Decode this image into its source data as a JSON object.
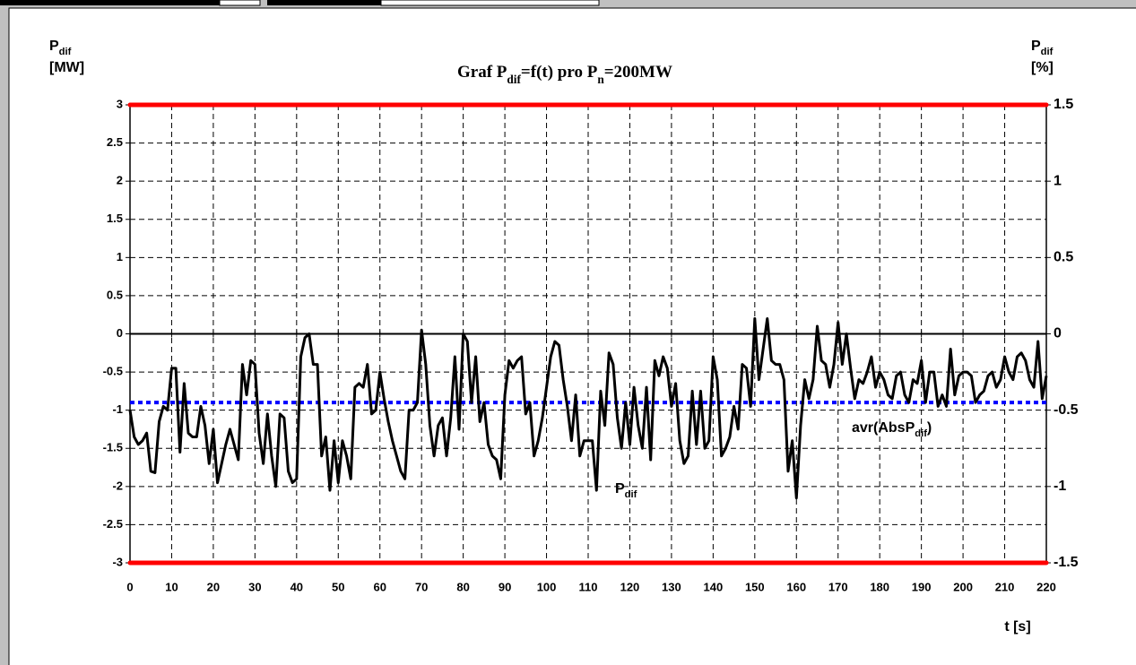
{
  "chart_data": {
    "type": "line",
    "title": [
      {
        "text": "Graf P",
        "sub": false
      },
      {
        "text": "dif",
        "sub": true
      },
      {
        "text": "=f(t) pro P",
        "sub": false
      },
      {
        "text": "n",
        "sub": true
      },
      {
        "text": "=200MW",
        "sub": false
      }
    ],
    "ylabel": [
      {
        "text": "P",
        "sub": false
      },
      {
        "text": "dif",
        "sub": true
      },
      {
        "text": "[MW]",
        "sub": false,
        "newline": true
      }
    ],
    "y2label": [
      {
        "text": "P",
        "sub": false
      },
      {
        "text": "dif",
        "sub": true
      },
      {
        "text": "[%]",
        "sub": false,
        "newline": true
      }
    ],
    "xlabel": "t [s]",
    "xlim": [
      0,
      220
    ],
    "xticks": [
      0,
      10,
      20,
      30,
      40,
      50,
      60,
      70,
      80,
      90,
      100,
      110,
      120,
      130,
      140,
      150,
      160,
      170,
      180,
      190,
      200,
      210,
      220
    ],
    "ylim": [
      -3,
      3
    ],
    "yticks": [
      3,
      2.5,
      2,
      1.5,
      1,
      0.5,
      0,
      -0.5,
      -1,
      -1.5,
      -2,
      -2.5,
      -3
    ],
    "y2lim": [
      -1.5,
      1.5
    ],
    "y2ticks": [
      1.5,
      1,
      0.5,
      0,
      -0.5,
      -1,
      -1.5
    ],
    "grid": true,
    "x": [
      0,
      1,
      2,
      3,
      4,
      5,
      6,
      7,
      8,
      9,
      10,
      11,
      12,
      13,
      14,
      15,
      16,
      17,
      18,
      19,
      20,
      21,
      22,
      23,
      24,
      25,
      26,
      27,
      28,
      29,
      30,
      31,
      32,
      33,
      34,
      35,
      36,
      37,
      38,
      39,
      40,
      41,
      42,
      43,
      44,
      45,
      46,
      47,
      48,
      49,
      50,
      51,
      52,
      53,
      54,
      55,
      56,
      57,
      58,
      59,
      60,
      61,
      62,
      63,
      64,
      65,
      66,
      67,
      68,
      69,
      70,
      71,
      72,
      73,
      74,
      75,
      76,
      77,
      78,
      79,
      80,
      81,
      82,
      83,
      84,
      85,
      86,
      87,
      88,
      89,
      90,
      91,
      92,
      93,
      94,
      95,
      96,
      97,
      98,
      99,
      100,
      101,
      102,
      103,
      104,
      105,
      106,
      107,
      108,
      109,
      110,
      111,
      112,
      113,
      114,
      115,
      116,
      117,
      118,
      119,
      120,
      121,
      122,
      123,
      124,
      125,
      126,
      127,
      128,
      129,
      130,
      131,
      132,
      133,
      134,
      135,
      136,
      137,
      138,
      139,
      140,
      141,
      142,
      143,
      144,
      145,
      146,
      147,
      148,
      149,
      150,
      151,
      152,
      153,
      154,
      155,
      156,
      157,
      158,
      159,
      160,
      161,
      162,
      163,
      164,
      165,
      166,
      167,
      168,
      169,
      170,
      171,
      172,
      173,
      174,
      175,
      176,
      177,
      178,
      179,
      180,
      181,
      182,
      183,
      184,
      185,
      186,
      187,
      188,
      189,
      190,
      191,
      192,
      193,
      194,
      195,
      196,
      197,
      198,
      199,
      200,
      201,
      202,
      203,
      204,
      205,
      206,
      207,
      208,
      209,
      210,
      211,
      212,
      213,
      214,
      215,
      216,
      217,
      218,
      219,
      220
    ],
    "series": [
      {
        "color": "#000000",
        "values": [
          -1,
          -1.35,
          -1.45,
          -1.4,
          -1.3,
          -1.8,
          -1.82,
          -1.15,
          -0.95,
          -1,
          -0.45,
          -0.45,
          -1.55,
          -0.65,
          -1.3,
          -1.35,
          -1.35,
          -0.95,
          -1.2,
          -1.7,
          -1.25,
          -1.95,
          -1.7,
          -1.45,
          -1.25,
          -1.45,
          -1.65,
          -0.4,
          -0.8,
          -0.35,
          -0.4,
          -1.3,
          -1.7,
          -1.05,
          -1.6,
          -2,
          -1.05,
          -1.1,
          -1.8,
          -1.95,
          -1.9,
          -0.3,
          -0.05,
          0,
          -0.4,
          -0.4,
          -1.6,
          -1.35,
          -2.05,
          -1.4,
          -1.95,
          -1.4,
          -1.6,
          -1.9,
          -0.7,
          -0.65,
          -0.7,
          -0.4,
          -1.05,
          -1,
          -0.5,
          -0.85,
          -1.15,
          -1.4,
          -1.6,
          -1.8,
          -1.9,
          -1,
          -1,
          -0.9,
          0.05,
          -0.4,
          -1.2,
          -1.6,
          -1.2,
          -1.1,
          -1.6,
          -1.1,
          -0.3,
          -1.25,
          0,
          -0.1,
          -0.9,
          -0.3,
          -1.15,
          -0.9,
          -1.45,
          -1.6,
          -1.65,
          -1.9,
          -0.8,
          -0.35,
          -0.45,
          -0.35,
          -0.3,
          -1.05,
          -0.9,
          -1.6,
          -1.4,
          -1.1,
          -0.7,
          -0.3,
          -0.1,
          -0.15,
          -0.6,
          -0.95,
          -1.4,
          -0.8,
          -1.6,
          -1.4,
          -1.4,
          -1.4,
          -2.05,
          -0.75,
          -1.2,
          -0.25,
          -0.4,
          -1.1,
          -1.5,
          -0.9,
          -1.45,
          -0.7,
          -1.2,
          -1.5,
          -0.7,
          -1.65,
          -0.35,
          -0.55,
          -0.3,
          -0.45,
          -0.95,
          -0.65,
          -1.4,
          -1.7,
          -1.6,
          -0.75,
          -1.45,
          -0.75,
          -1.5,
          -1.4,
          -0.3,
          -0.6,
          -1.6,
          -1.5,
          -1.35,
          -0.95,
          -1.25,
          -0.4,
          -0.45,
          -0.95,
          0.2,
          -0.6,
          -0.2,
          0.2,
          -0.35,
          -0.4,
          -0.4,
          -0.6,
          -1.8,
          -1.4,
          -2.15,
          -1.2,
          -0.6,
          -0.85,
          -0.6,
          0.1,
          -0.35,
          -0.4,
          -0.7,
          -0.4,
          0.15,
          -0.4,
          0,
          -0.45,
          -0.85,
          -0.6,
          -0.65,
          -0.5,
          -0.3,
          -0.7,
          -0.5,
          -0.6,
          -0.8,
          -0.85,
          -0.55,
          -0.5,
          -0.8,
          -0.9,
          -0.6,
          -0.65,
          -0.35,
          -0.9,
          -0.5,
          -0.5,
          -0.95,
          -0.8,
          -0.95,
          -0.2,
          -0.8,
          -0.55,
          -0.5,
          -0.5,
          -0.55,
          -0.9,
          -0.8,
          -0.75,
          -0.55,
          -0.5,
          -0.7,
          -0.6,
          -0.3,
          -0.5,
          -0.6,
          -0.3,
          -0.25,
          -0.35,
          -0.6,
          -0.7,
          -0.1,
          -0.85,
          -0.55
        ]
      }
    ],
    "hlines": [
      {
        "value": 3,
        "color": "#ff0000",
        "style": "solid"
      },
      {
        "value": -3,
        "color": "#ff0000",
        "style": "solid"
      },
      {
        "value": -0.9,
        "color": "#0000ff",
        "style": "dotted"
      }
    ],
    "annotations": [
      [
        {
          "text": "avr(AbsP",
          "sub": false
        },
        {
          "text": "dif",
          "sub": true
        },
        {
          "text": ")",
          "sub": false
        }
      ],
      [
        {
          "text": "P",
          "sub": false
        },
        {
          "text": "dif",
          "sub": true
        }
      ]
    ]
  }
}
